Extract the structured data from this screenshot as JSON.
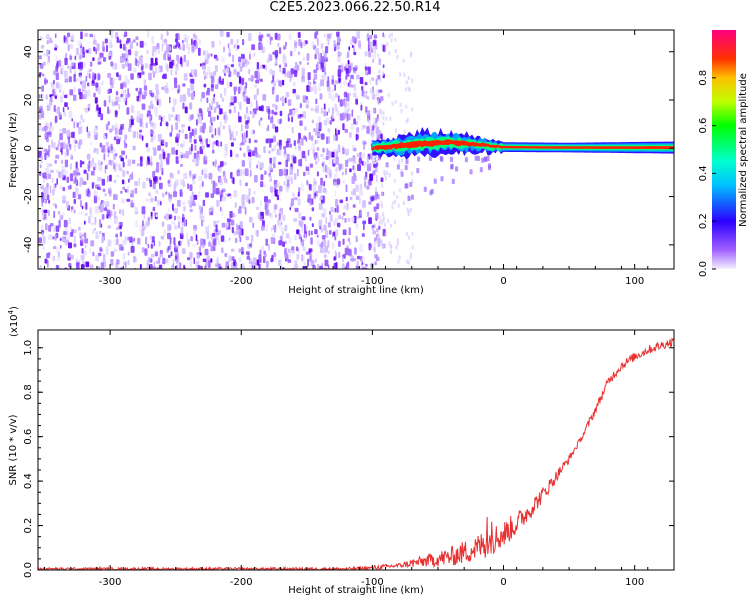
{
  "title": "C2E5.2023.066.22.50.R14",
  "chart_data": [
    {
      "type": "heatmap",
      "xlabel": "Height of straight line (km)",
      "ylabel": "Frequency (Hz)",
      "xlim": [
        -355,
        130
      ],
      "ylim": [
        -50,
        49
      ],
      "xticks": [
        -300,
        -200,
        -100,
        0,
        100
      ],
      "yticks": [
        -40,
        -20,
        0,
        20,
        40
      ],
      "noise_region_x": [
        -355,
        -100
      ],
      "signal_band": [
        {
          "x": -100,
          "f_center": 0.0,
          "halfwidth": 3.0
        },
        {
          "x": -80,
          "f_center": 1.0,
          "halfwidth": 4.0
        },
        {
          "x": -60,
          "f_center": 2.0,
          "halfwidth": 4.5
        },
        {
          "x": -40,
          "f_center": 2.5,
          "halfwidth": 4.0
        },
        {
          "x": -20,
          "f_center": 1.5,
          "halfwidth": 3.0
        },
        {
          "x": 0,
          "f_center": 0.5,
          "halfwidth": 2.0
        },
        {
          "x": 50,
          "f_center": 0.3,
          "halfwidth": 2.0
        },
        {
          "x": 130,
          "f_center": 0.3,
          "halfwidth": 2.5
        }
      ],
      "colorbar": {
        "label": "Normalized spectral amplitude",
        "ticks": [
          "0.0",
          "0.2",
          "0.4",
          "0.6",
          "0.8"
        ],
        "range": [
          0,
          1
        ]
      },
      "grid": false
    },
    {
      "type": "line",
      "xlabel": "Height of straight line (km)",
      "ylabel": "SNR (10 * v/v)",
      "scale_label": "(x10",
      "scale_exp": "4",
      "scale_close": ")",
      "xlim": [
        -355,
        130
      ],
      "ylim": [
        0,
        1.08
      ],
      "xticks": [
        -300,
        -200,
        -100,
        0,
        100
      ],
      "yticks": [
        "0.0",
        "0.2",
        "0.4",
        "0.6",
        "0.8",
        "1.0"
      ],
      "series": [
        {
          "color": "#e83030",
          "x": [
            -355,
            -300,
            -200,
            -120,
            -100,
            -80,
            -60,
            -40,
            -20,
            -10,
            0,
            10,
            20,
            30,
            40,
            50,
            60,
            70,
            80,
            90,
            100,
            110,
            120,
            130
          ],
          "y": [
            0.005,
            0.005,
            0.005,
            0.005,
            0.01,
            0.02,
            0.04,
            0.06,
            0.1,
            0.13,
            0.16,
            0.21,
            0.27,
            0.34,
            0.42,
            0.5,
            0.6,
            0.72,
            0.85,
            0.92,
            0.96,
            0.99,
            1.01,
            1.03
          ]
        }
      ],
      "grid": false
    }
  ]
}
